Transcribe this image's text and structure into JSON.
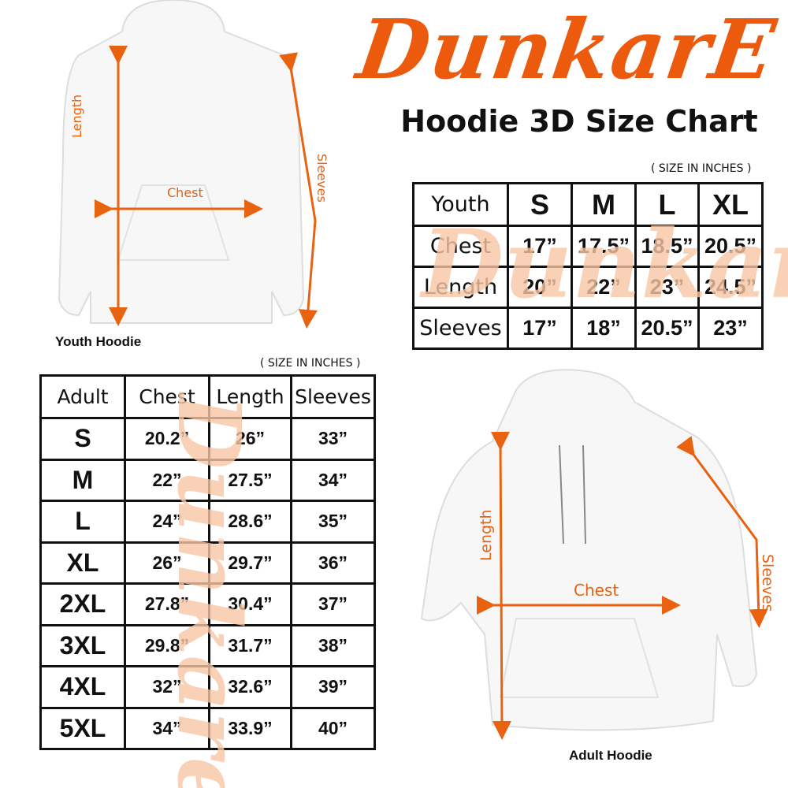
{
  "brand": {
    "logo_text": "DunkarE",
    "color": "#ec5a0d",
    "watermark_color": "#f7c6a4"
  },
  "title": "Hoodie 3D Size Chart",
  "youth": {
    "caption": "Youth Hoodie",
    "unit_note": "( SIZE IN INCHES )",
    "labels": {
      "length": "Length",
      "chest": "Chest",
      "sleeves": "Sleeves"
    },
    "header": [
      "Youth",
      "S",
      "M",
      "L",
      "XL"
    ],
    "rows": [
      [
        "Chest",
        "17”",
        "17.5”",
        "18.5”",
        "20.5”"
      ],
      [
        "Length",
        "20”",
        "22”",
        "23”",
        "24.5”"
      ],
      [
        "Sleeves",
        "17”",
        "18”",
        "20.5”",
        "23”"
      ]
    ]
  },
  "adult": {
    "caption": "Adult Hoodie",
    "unit_note": "( SIZE IN INCHES )",
    "labels": {
      "length": "Length",
      "chest": "Chest",
      "sleeves": "Sleeves"
    },
    "header": [
      "Adult",
      "Chest",
      "Length",
      "Sleeves"
    ],
    "rows": [
      [
        "S",
        "20.2”",
        "26”",
        "33”"
      ],
      [
        "M",
        "22”",
        "27.5”",
        "34”"
      ],
      [
        "L",
        "24”",
        "28.6”",
        "35”"
      ],
      [
        "XL",
        "26”",
        "29.7”",
        "36”"
      ],
      [
        "2XL",
        "27.8”",
        "30.4”",
        "37”"
      ],
      [
        "3XL",
        "29.8”",
        "31.7”",
        "38”"
      ],
      [
        "4XL",
        "32”",
        "32.6”",
        "39”"
      ],
      [
        "5XL",
        "34”",
        "33.9”",
        "40”"
      ]
    ]
  }
}
